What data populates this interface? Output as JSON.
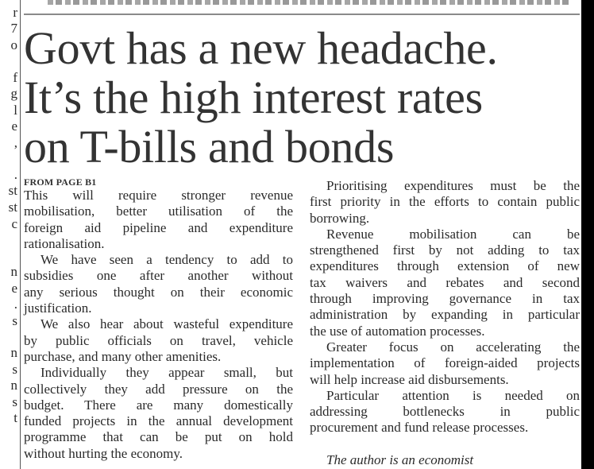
{
  "margin_fragments": [
    "r",
    "7",
    "o",
    "f",
    "g",
    "l",
    "e",
    ",",
    ".",
    "st",
    "st",
    "c",
    "n",
    "e",
    ".",
    "s",
    "n",
    "s",
    "n",
    "s",
    "t"
  ],
  "headline": [
    "Govt has a new headache.",
    "It’s the high interest rates",
    "on T-bills and bonds"
  ],
  "kicker": "FROM PAGE B1",
  "left_column": [
    [
      "This will require stronger revenue",
      "mobilisation, better utilisation of the",
      "foreign aid pipeline and expenditure",
      "rationalisation."
    ],
    [
      "We have seen a tendency to add to",
      "subsidies one after another without",
      "any serious thought on their economic",
      "justification."
    ],
    [
      "We also hear about wasteful expenditure",
      "by public officials on travel, vehicle",
      "purchase, and many other amenities."
    ],
    [
      "Individually they appear small, but",
      "collectively they add pressure on the",
      "budget. There are many domestically",
      "funded projects in the annual development",
      "programme that can be put on hold",
      "without hurting the economy."
    ]
  ],
  "right_column": [
    [
      "Prioritising expenditures must be the",
      "first priority in the efforts to contain public",
      "borrowing."
    ],
    [
      "Revenue mobilisation can be",
      "strengthened first by not adding to tax",
      "expenditures through extension of new",
      "tax waivers and rebates and second",
      "through improving governance in tax",
      "administration by expanding in particular",
      "the use of automation processes."
    ],
    [
      "Greater focus on accelerating the",
      "implementation of foreign-aided projects",
      "will help increase aid disbursements."
    ],
    [
      "Particular attention is needed on",
      "addressing bottlenecks in public",
      "procurement and fund release processes."
    ]
  ],
  "byline": "The author is an economist"
}
